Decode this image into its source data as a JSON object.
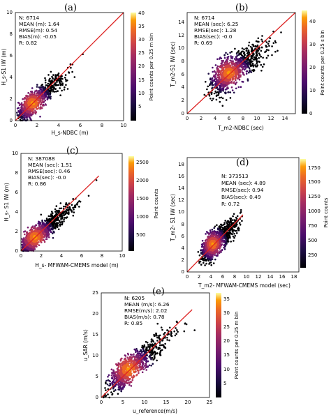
{
  "panels": [
    {
      "letter": "(a)",
      "stats": [
        "N: 6714",
        "MEAN (m): 1.64",
        "RMSE(m): 0.54",
        "BIAS(m): -0.05",
        "R: 0.82"
      ],
      "xlabel": "H_s-NDBC (m)",
      "ylabel": "H_s-S1 IW (m)",
      "xticks": [
        "0",
        "2",
        "4",
        "6",
        "8",
        "10"
      ],
      "yticks": [
        "0",
        "2",
        "4",
        "6",
        "8",
        "10"
      ],
      "cbar_ticks": [
        "5",
        "10",
        "15",
        "20",
        "25",
        "30",
        "35",
        "40"
      ],
      "cbar_label": "Point counts per 0.25 m bin"
    },
    {
      "letter": "(b)",
      "stats": [
        "N: 6714",
        "MEAN (sec): 6.25",
        "RMSE(sec): 1.28",
        "BIAS(sec): -0.0",
        "R: 0.69"
      ],
      "xlabel": "T_m2-NDBC (sec)",
      "ylabel": "T_m2-S1 IW (sec)",
      "xticks": [
        "0",
        "2",
        "4",
        "6",
        "8",
        "10",
        "12",
        "14"
      ],
      "yticks": [
        "0",
        "2",
        "4",
        "6",
        "8",
        "10",
        "12",
        "14"
      ],
      "cbar_ticks": [
        "0",
        "10",
        "20",
        "30",
        "40"
      ],
      "cbar_label": "Point counts per 0.25 s bin"
    },
    {
      "letter": "(c)",
      "stats": [
        "N: 387088",
        "MEAN (sec): 1.51",
        "RMSE(sec): 0.46",
        "BIAS(sec): -0.0",
        "R: 0.86"
      ],
      "xlabel": "H_s- MFWAM-CMEMS model (m)",
      "ylabel": "H_s- S1 IW (m)",
      "xticks": [
        "0",
        "2",
        "4",
        "6",
        "8",
        "10"
      ],
      "yticks": [
        "0",
        "2",
        "4",
        "6",
        "8",
        "10"
      ],
      "cbar_ticks": [
        "500",
        "1000",
        "1500",
        "2000",
        "2500"
      ],
      "cbar_label": "Point counts"
    },
    {
      "letter": "(d)",
      "stats": [
        "N: 373513",
        "MEAN (sec): 4.89",
        "RMSE(sec): 0.94",
        "BIAS(sec): 0.49",
        "R: 0.72"
      ],
      "xlabel": "T_m2- MFWAM-CMEMS model (sec)",
      "ylabel": "T_m2- S1 IW (sec)",
      "xticks": [
        "0",
        "2",
        "4",
        "6",
        "8",
        "10",
        "12",
        "14",
        "16",
        "18"
      ],
      "yticks": [
        "0",
        "2",
        "4",
        "6",
        "8",
        "10",
        "12",
        "14",
        "16",
        "18"
      ],
      "cbar_ticks": [
        "250",
        "500",
        "750",
        "1000",
        "1250",
        "1500",
        "1750"
      ],
      "cbar_label": "Point counts"
    },
    {
      "letter": "(e)",
      "stats": [
        "N: 6205",
        "MEAN (m/s): 6.26",
        "RMSE(m/s): 2.02",
        "BIAS(m/s): 0.78",
        "R: 0.85"
      ],
      "xlabel": "u_reference(m/s)",
      "ylabel": "u_SAR (m/s)",
      "xticks": [
        "0",
        "5",
        "10",
        "15",
        "20",
        "25"
      ],
      "yticks": [
        "0",
        "5",
        "10",
        "15",
        "20",
        "25"
      ],
      "cbar_ticks": [
        "5",
        "10",
        "15",
        "20",
        "25",
        "30",
        "35"
      ],
      "cbar_label": "Point counts per 0.25 m bin"
    }
  ],
  "colors": {
    "regression_line": "#dd2222",
    "colormap": "inferno-like"
  },
  "chart_data": [
    {
      "type": "scatter",
      "title": "(a)",
      "xlabel": "Hs-NDBC (m)",
      "ylabel": "Hs-S1 IW (m)",
      "xlim": [
        0,
        10
      ],
      "ylim": [
        0,
        10
      ],
      "colorbar_range": [
        0,
        40
      ],
      "n": 6714,
      "mean": 1.64,
      "rmse": 0.54,
      "bias": -0.05,
      "r": 0.82,
      "reference_line": [
        [
          0,
          0
        ],
        [
          10,
          10
        ]
      ],
      "density_center": [
        1.6,
        1.6
      ],
      "density_spread": [
        0.9,
        0.9
      ]
    },
    {
      "type": "scatter",
      "title": "(b)",
      "xlabel": "Tm2-NDBC (sec)",
      "ylabel": "Tm2-S1 IW (sec)",
      "xlim": [
        0,
        15.5
      ],
      "ylim": [
        0,
        15.5
      ],
      "colorbar_range": [
        0,
        45
      ],
      "n": 6714,
      "mean": 6.25,
      "rmse": 1.28,
      "bias": -0.0,
      "r": 0.69,
      "reference_line": [
        [
          0,
          0
        ],
        [
          15.5,
          15.5
        ]
      ],
      "density_center": [
        6.0,
        6.2
      ],
      "density_spread": [
        1.6,
        1.6
      ]
    },
    {
      "type": "scatter",
      "title": "(c)",
      "xlabel": "Hs- MFWAM-CMEMS model (m)",
      "ylabel": "Hs- S1 IW (m)",
      "xlim": [
        0,
        10
      ],
      "ylim": [
        0,
        10
      ],
      "colorbar_range": [
        0,
        2600
      ],
      "n": 387088,
      "mean": 1.51,
      "rmse": 0.46,
      "bias": -0.0,
      "r": 0.86,
      "reference_line": [
        [
          0,
          0
        ],
        [
          7.7,
          7.7
        ]
      ],
      "density_center": [
        1.4,
        1.4
      ],
      "density_spread": [
        1.0,
        1.0
      ]
    },
    {
      "type": "scatter",
      "title": "(d)",
      "xlabel": "Tm2- MFWAM-CMEMS model (sec)",
      "ylabel": "Tm2- S1 IW (sec)",
      "xlim": [
        0,
        19
      ],
      "ylim": [
        0,
        19
      ],
      "colorbar_range": [
        0,
        1850
      ],
      "n": 373513,
      "mean": 4.89,
      "rmse": 0.94,
      "bias": 0.49,
      "r": 0.72,
      "reference_line": [
        [
          0,
          0
        ],
        [
          9.5,
          9.5
        ]
      ],
      "density_center": [
        4.4,
        4.6
      ],
      "density_spread": [
        1.2,
        1.4
      ]
    },
    {
      "type": "scatter",
      "title": "(e)",
      "xlabel": "u_reference (m/s)",
      "ylabel": "u_SAR (m/s)",
      "xlim": [
        0,
        25
      ],
      "ylim": [
        0,
        25
      ],
      "colorbar_range": [
        0,
        37
      ],
      "n": 6205,
      "mean": 6.26,
      "rmse": 2.02,
      "bias": 0.78,
      "r": 0.85,
      "reference_line": [
        [
          0,
          0
        ],
        [
          21,
          21
        ]
      ],
      "density_center": [
        6.3,
        6.7
      ],
      "density_spread": [
        3.0,
        3.0
      ]
    }
  ]
}
